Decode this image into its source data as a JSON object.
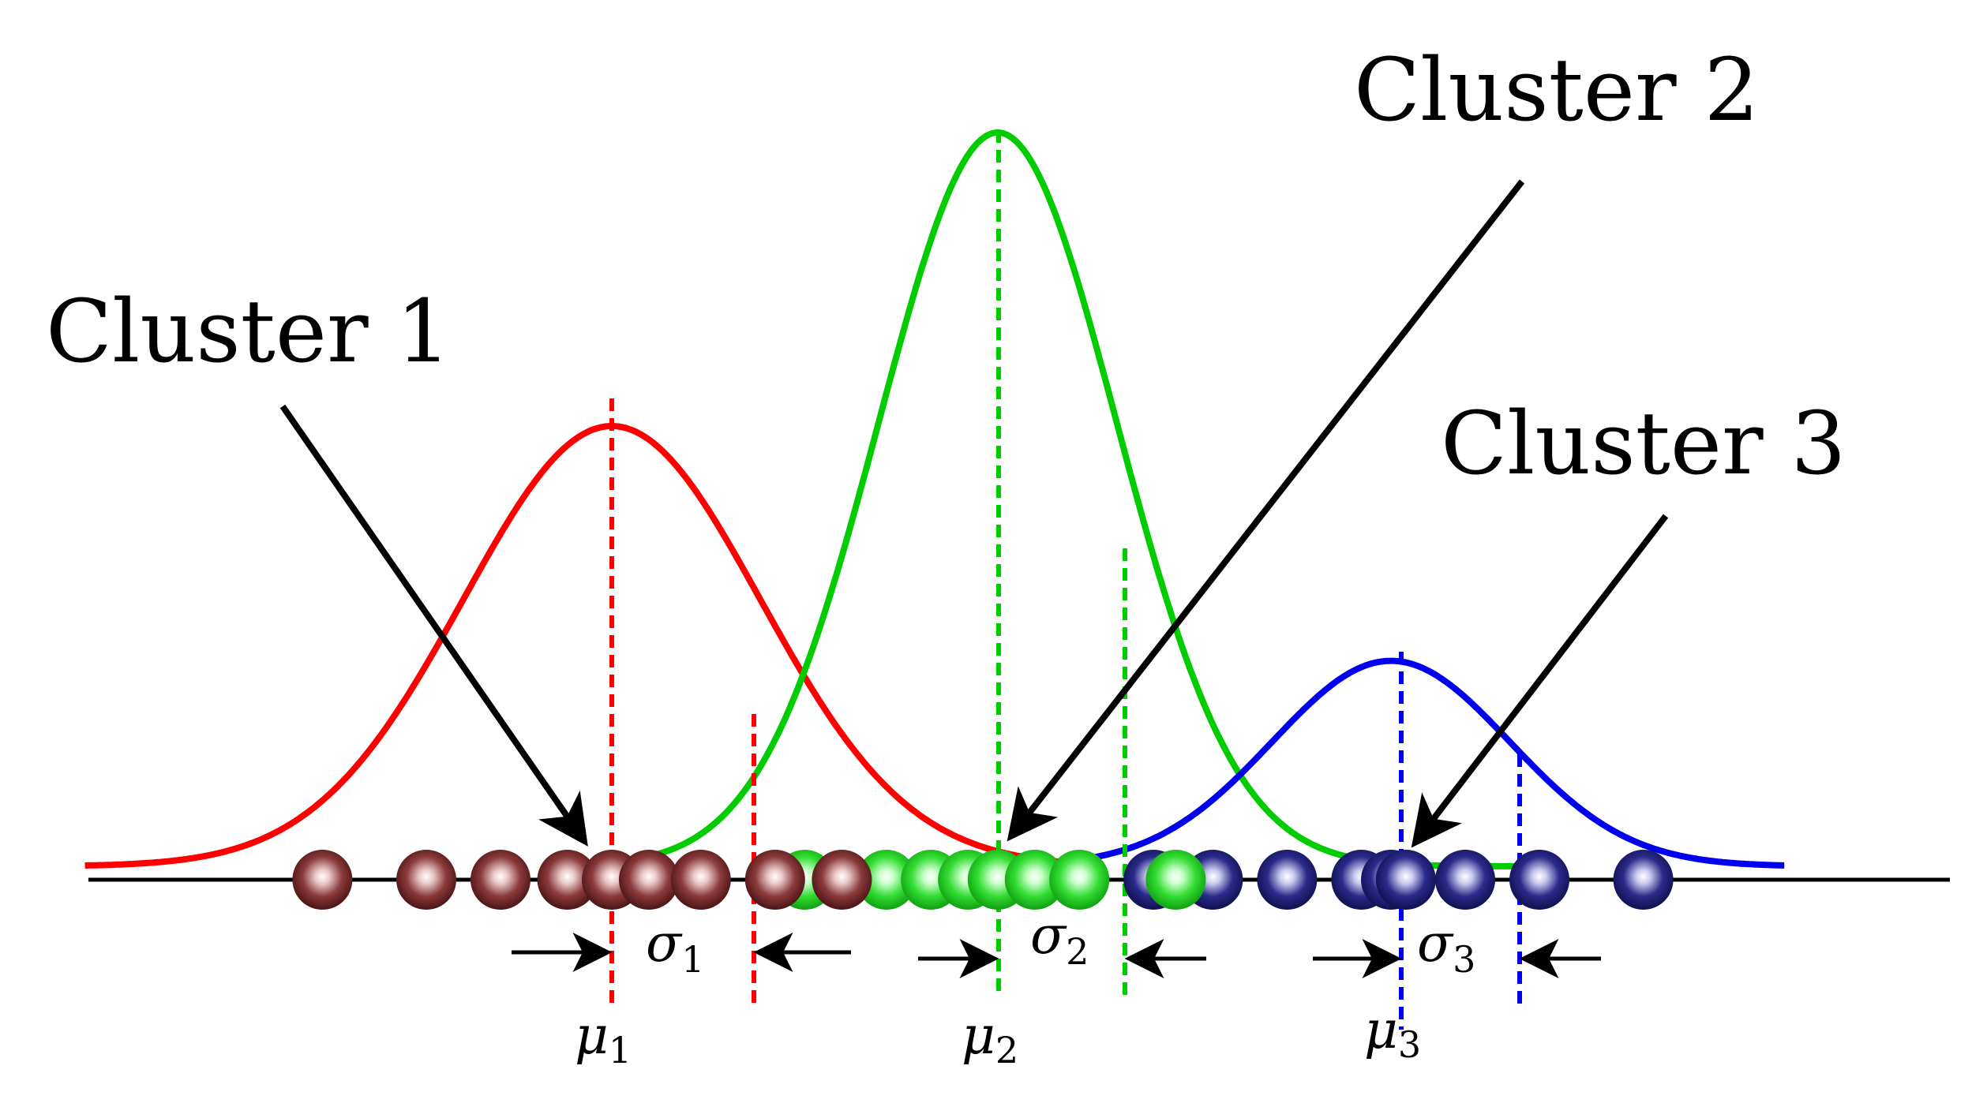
{
  "labels": {
    "cluster_1": "Cluster 1",
    "cluster_2": "Cluster 2",
    "cluster_3": "Cluster 3"
  },
  "math": {
    "mu_symbol": "μ",
    "sigma_symbol": "σ",
    "mu_1_sub": "1",
    "mu_2_sub": "2",
    "mu_3_sub": "3",
    "sigma_1_sub": "1",
    "sigma_2_sub": "2",
    "sigma_3_sub": "3"
  },
  "colors": {
    "cluster_1": "#ff0000",
    "cluster_2": "#00cc00",
    "cluster_3": "#0000ee",
    "ball_1": "#8b3a3a",
    "ball_2": "#44e044",
    "ball_3": "#2a2a8a",
    "axis": "#000000"
  },
  "chart_data": {
    "type": "gaussian-mixture",
    "components": [
      {
        "mean": 0,
        "sigma": 1.0,
        "amplitude": 0.6
      },
      {
        "mean": 2.6,
        "sigma": 0.8,
        "amplitude": 1.0
      },
      {
        "mean": 5.25,
        "sigma": 0.8,
        "amplitude": 0.28
      }
    ],
    "points": [
      {
        "cluster": 3,
        "x": 3.65
      },
      {
        "cluster": 3,
        "x": 4.05
      },
      {
        "cluster": 3,
        "x": 4.55
      },
      {
        "cluster": 3,
        "x": 5.05
      },
      {
        "cluster": 3,
        "x": 5.25
      },
      {
        "cluster": 3,
        "x": 5.35
      },
      {
        "cluster": 3,
        "x": 5.75
      },
      {
        "cluster": 3,
        "x": 6.25
      },
      {
        "cluster": 3,
        "x": 6.95
      },
      {
        "cluster": 2,
        "x": 1.3
      },
      {
        "cluster": 2,
        "x": 1.85
      },
      {
        "cluster": 2,
        "x": 2.15
      },
      {
        "cluster": 2,
        "x": 2.4
      },
      {
        "cluster": 2,
        "x": 2.6
      },
      {
        "cluster": 2,
        "x": 2.85
      },
      {
        "cluster": 2,
        "x": 3.15
      },
      {
        "cluster": 2,
        "x": 3.8
      },
      {
        "cluster": 1,
        "x": -1.95
      },
      {
        "cluster": 1,
        "x": -1.25
      },
      {
        "cluster": 1,
        "x": -0.75
      },
      {
        "cluster": 1,
        "x": -0.3
      },
      {
        "cluster": 1,
        "x": 0.0
      },
      {
        "cluster": 1,
        "x": 0.25
      },
      {
        "cluster": 1,
        "x": 0.6
      },
      {
        "cluster": 1,
        "x": 1.1
      },
      {
        "cluster": 1,
        "x": 1.55
      }
    ]
  }
}
